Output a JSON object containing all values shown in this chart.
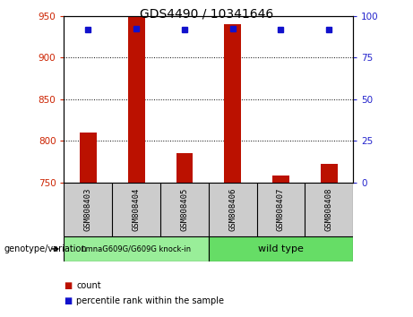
{
  "title": "GDS4490 / 10341646",
  "samples": [
    "GSM808403",
    "GSM808404",
    "GSM808405",
    "GSM808406",
    "GSM808407",
    "GSM808408"
  ],
  "bar_values": [
    810,
    950,
    785,
    940,
    758,
    772
  ],
  "bar_base": 750,
  "percentile_values": [
    92,
    92.5,
    92,
    92.5,
    92,
    91.5
  ],
  "ylim_left": [
    750,
    950
  ],
  "ylim_right": [
    0,
    100
  ],
  "yticks_left": [
    750,
    800,
    850,
    900,
    950
  ],
  "yticks_right": [
    0,
    25,
    50,
    75,
    100
  ],
  "bar_color": "#bb1100",
  "percentile_color": "#1111cc",
  "group1_label": "LmnaG609G/G609G knock-in",
  "group2_label": "wild type",
  "group1_color": "#99ee99",
  "group2_color": "#66dd66",
  "group1_indices": [
    0,
    1,
    2
  ],
  "group2_indices": [
    3,
    4,
    5
  ],
  "genotype_label": "genotype/variation",
  "legend_count_label": "count",
  "legend_percentile_label": "percentile rank within the sample",
  "bg_color": "#cccccc",
  "plot_bg_color": "#ffffff",
  "left_tick_color": "#cc2200",
  "right_tick_color": "#2222cc"
}
